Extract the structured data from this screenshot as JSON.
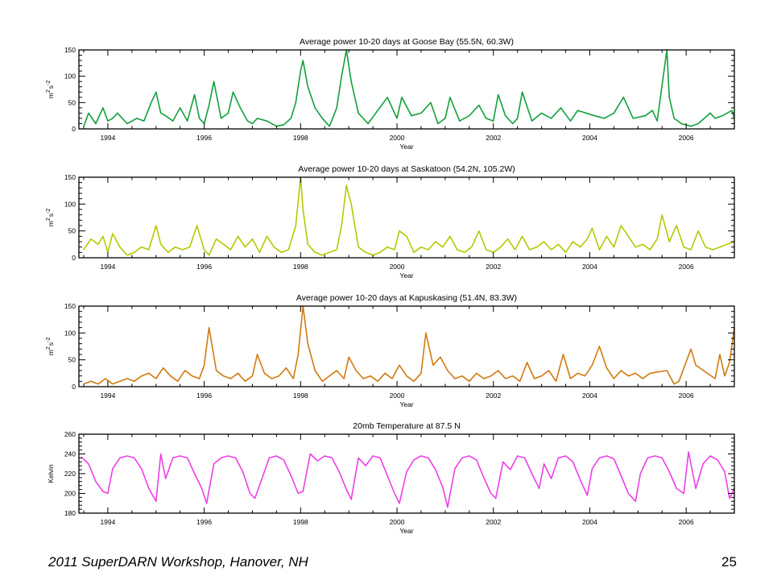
{
  "footer": {
    "text": "2011 SuperDARN Workshop, Hanover, NH",
    "page_number": "25"
  },
  "chart_data": [
    {
      "type": "line",
      "title": "Average power 10-20 days at Goose Bay (55.5N, 60.3W)",
      "xlabel": "Year",
      "ylabel": "m^2 s^-2",
      "xlim": [
        1993.4,
        2007.0
      ],
      "ylim": [
        0,
        150
      ],
      "xticks": [
        1994,
        1996,
        1998,
        2000,
        2002,
        2004,
        2006
      ],
      "yticks": [
        0,
        50,
        100,
        150
      ],
      "grid": false,
      "color": "#12a03c",
      "gaps": [
        [
          1994.2,
          1994.35
        ],
        [
          1999.5,
          1999.75
        ],
        [
          2002.85,
          2002.95
        ],
        [
          2003.8,
          2004.05
        ],
        [
          2004.95,
          2005.1
        ],
        [
          2005.45,
          2005.55
        ],
        [
          2006.3,
          2006.45
        ]
      ],
      "series": [
        {
          "x": [
            1993.5,
            1993.6,
            1993.75,
            1993.9,
            1994.0,
            1994.1,
            1994.2,
            1994.4,
            1994.6,
            1994.75,
            1994.9,
            1995.0,
            1995.1,
            1995.2,
            1995.35,
            1995.5,
            1995.65,
            1995.8,
            1995.9,
            1996.0,
            1996.1,
            1996.2,
            1996.35,
            1996.5,
            1996.6,
            1996.75,
            1996.9,
            1997.0,
            1997.1,
            1997.3,
            1997.5,
            1997.65,
            1997.8,
            1997.9,
            1998.0,
            1998.05,
            1998.15,
            1998.3,
            1998.45,
            1998.6,
            1998.75,
            1998.85,
            1998.95,
            1999.05,
            1999.2,
            1999.4,
            1999.8,
            1999.9,
            2000.0,
            2000.1,
            2000.3,
            2000.5,
            2000.7,
            2000.85,
            2001.0,
            2001.1,
            2001.3,
            2001.5,
            2001.7,
            2001.85,
            2002.0,
            2002.1,
            2002.25,
            2002.4,
            2002.5,
            2002.6,
            2002.8,
            2003.0,
            2003.2,
            2003.4,
            2003.6,
            2003.75,
            2004.1,
            2004.3,
            2004.5,
            2004.7,
            2004.9,
            2005.15,
            2005.3,
            2005.4,
            2005.6,
            2005.65,
            2005.75,
            2005.9,
            2006.1,
            2006.25,
            2006.5,
            2006.6,
            2006.75,
            2006.85,
            2006.95,
            2007.0
          ],
          "y": [
            5,
            30,
            10,
            40,
            15,
            20,
            30,
            10,
            20,
            15,
            50,
            70,
            30,
            25,
            15,
            40,
            15,
            65,
            20,
            10,
            45,
            90,
            20,
            30,
            70,
            40,
            15,
            10,
            20,
            15,
            5,
            8,
            20,
            50,
            110,
            130,
            80,
            40,
            20,
            5,
            40,
            100,
            150,
            90,
            30,
            10,
            60,
            40,
            20,
            60,
            25,
            30,
            50,
            10,
            20,
            60,
            15,
            25,
            45,
            20,
            15,
            65,
            25,
            10,
            20,
            70,
            15,
            30,
            20,
            40,
            15,
            35,
            25,
            20,
            30,
            60,
            20,
            25,
            35,
            15,
            150,
            60,
            20,
            10,
            5,
            10,
            30,
            20,
            25,
            30,
            35,
            20
          ]
        }
      ]
    },
    {
      "type": "line",
      "title": "Average power 10-20 days at Saskatoon (54.2N, 105.2W)",
      "xlabel": "Year",
      "ylabel": "m^2 s^-2",
      "xlim": [
        1993.4,
        2007.0
      ],
      "ylim": [
        0,
        150
      ],
      "xticks": [
        1994,
        1996,
        1998,
        2000,
        2002,
        2004,
        2006
      ],
      "yticks": [
        0,
        50,
        100,
        150
      ],
      "grid": false,
      "color": "#b7c800",
      "gaps": [],
      "series": [
        {
          "x": [
            1993.5,
            1993.65,
            1993.8,
            1993.9,
            1994.0,
            1994.1,
            1994.25,
            1994.4,
            1994.55,
            1994.7,
            1994.85,
            1995.0,
            1995.1,
            1995.25,
            1995.4,
            1995.55,
            1995.7,
            1995.85,
            1996.0,
            1996.1,
            1996.25,
            1996.4,
            1996.55,
            1996.7,
            1996.85,
            1997.0,
            1997.15,
            1997.3,
            1997.45,
            1997.6,
            1997.75,
            1997.9,
            1998.0,
            1998.05,
            1998.15,
            1998.3,
            1998.45,
            1998.6,
            1998.75,
            1998.85,
            1998.95,
            1999.05,
            1999.2,
            1999.35,
            1999.5,
            1999.65,
            1999.8,
            1999.95,
            2000.05,
            2000.2,
            2000.35,
            2000.5,
            2000.65,
            2000.8,
            2000.95,
            2001.1,
            2001.25,
            2001.4,
            2001.55,
            2001.7,
            2001.85,
            2002.0,
            2002.15,
            2002.3,
            2002.45,
            2002.6,
            2002.75,
            2002.9,
            2003.05,
            2003.2,
            2003.35,
            2003.5,
            2003.65,
            2003.8,
            2003.95,
            2004.05,
            2004.2,
            2004.35,
            2004.5,
            2004.65,
            2004.8,
            2004.95,
            2005.1,
            2005.25,
            2005.4,
            2005.5,
            2005.65,
            2005.8,
            2005.95,
            2006.1,
            2006.25,
            2006.4,
            2006.55,
            2006.7,
            2006.85,
            2007.0
          ],
          "y": [
            15,
            35,
            25,
            40,
            10,
            45,
            20,
            5,
            10,
            20,
            15,
            60,
            25,
            10,
            20,
            15,
            20,
            60,
            15,
            5,
            35,
            25,
            15,
            40,
            20,
            35,
            10,
            40,
            20,
            10,
            15,
            60,
            150,
            90,
            25,
            10,
            5,
            10,
            15,
            60,
            135,
            100,
            20,
            10,
            5,
            10,
            20,
            15,
            50,
            40,
            10,
            20,
            15,
            30,
            20,
            40,
            15,
            10,
            20,
            50,
            15,
            10,
            20,
            35,
            15,
            40,
            15,
            20,
            30,
            15,
            25,
            10,
            30,
            20,
            35,
            55,
            15,
            40,
            20,
            60,
            40,
            20,
            25,
            15,
            35,
            80,
            30,
            60,
            20,
            15,
            50,
            20,
            15,
            20,
            25,
            30
          ]
        }
      ]
    },
    {
      "type": "line",
      "title": "Average power 10-20 days at Kapuskasing (51.4N, 83.3W)",
      "xlabel": "Year",
      "ylabel": "m^2 s^-2",
      "xlim": [
        1993.4,
        2007.0
      ],
      "ylim": [
        0,
        150
      ],
      "xticks": [
        1994,
        1996,
        1998,
        2000,
        2002,
        2004,
        2006
      ],
      "yticks": [
        0,
        50,
        100,
        150
      ],
      "grid": false,
      "color": "#d07a10",
      "gaps": [
        [
          2005.3,
          2005.55
        ],
        [
          2005.9,
          2006.05
        ],
        [
          2006.25,
          2006.55
        ]
      ],
      "series": [
        {
          "x": [
            1993.5,
            1993.65,
            1993.8,
            1993.95,
            1994.1,
            1994.25,
            1994.4,
            1994.55,
            1994.7,
            1994.85,
            1995.0,
            1995.15,
            1995.3,
            1995.45,
            1995.6,
            1995.75,
            1995.9,
            1996.0,
            1996.1,
            1996.25,
            1996.4,
            1996.55,
            1996.7,
            1996.85,
            1997.0,
            1997.1,
            1997.25,
            1997.4,
            1997.55,
            1997.7,
            1997.85,
            1997.95,
            1998.05,
            1998.15,
            1998.3,
            1998.45,
            1998.6,
            1998.75,
            1998.9,
            1999.0,
            1999.15,
            1999.3,
            1999.45,
            1999.6,
            1999.75,
            1999.9,
            2000.05,
            2000.2,
            2000.35,
            2000.5,
            2000.6,
            2000.75,
            2000.9,
            2001.05,
            2001.2,
            2001.35,
            2001.5,
            2001.65,
            2001.8,
            2001.95,
            2002.1,
            2002.25,
            2002.4,
            2002.55,
            2002.7,
            2002.85,
            2003.0,
            2003.15,
            2003.3,
            2003.45,
            2003.6,
            2003.75,
            2003.9,
            2004.05,
            2004.2,
            2004.35,
            2004.5,
            2004.65,
            2004.8,
            2004.95,
            2005.1,
            2005.25,
            2005.6,
            2005.75,
            2005.85,
            2006.1,
            2006.2,
            2006.6,
            2006.7,
            2006.8,
            2006.9,
            2007.0
          ],
          "y": [
            5,
            10,
            5,
            15,
            5,
            10,
            15,
            10,
            20,
            25,
            15,
            35,
            20,
            10,
            30,
            20,
            15,
            40,
            110,
            30,
            20,
            15,
            25,
            10,
            20,
            60,
            25,
            15,
            20,
            35,
            15,
            60,
            150,
            80,
            30,
            10,
            20,
            30,
            15,
            55,
            30,
            15,
            20,
            10,
            25,
            15,
            40,
            20,
            10,
            25,
            100,
            40,
            55,
            30,
            15,
            20,
            10,
            25,
            15,
            20,
            30,
            15,
            20,
            10,
            45,
            15,
            20,
            30,
            10,
            60,
            15,
            25,
            20,
            40,
            75,
            35,
            15,
            30,
            20,
            25,
            15,
            25,
            30,
            5,
            10,
            70,
            40,
            15,
            60,
            20,
            45,
            110
          ]
        }
      ]
    },
    {
      "type": "line",
      "title": "20mb Temperature at 87.5 N",
      "xlabel": "Year",
      "ylabel": "Kelvin",
      "xlim": [
        1993.4,
        2007.0
      ],
      "ylim": [
        180,
        260
      ],
      "xticks": [
        1994,
        1996,
        1998,
        2000,
        2002,
        2004,
        2006
      ],
      "yticks": [
        180,
        200,
        220,
        240,
        260
      ],
      "grid": false,
      "color": "#ee3ee8",
      "gaps": [],
      "series": [
        {
          "x": [
            1993.45,
            1993.6,
            1993.75,
            1993.9,
            1994.0,
            1994.1,
            1994.25,
            1994.4,
            1994.55,
            1994.7,
            1994.85,
            1995.0,
            1995.1,
            1995.2,
            1995.35,
            1995.5,
            1995.65,
            1995.8,
            1995.95,
            1996.05,
            1996.2,
            1996.35,
            1996.5,
            1996.65,
            1996.8,
            1996.95,
            1997.05,
            1997.2,
            1997.35,
            1997.5,
            1997.65,
            1997.8,
            1997.95,
            1998.05,
            1998.2,
            1998.35,
            1998.5,
            1998.65,
            1998.8,
            1998.95,
            1999.05,
            1999.2,
            1999.35,
            1999.5,
            1999.65,
            1999.8,
            1999.95,
            2000.05,
            2000.2,
            2000.35,
            2000.5,
            2000.65,
            2000.8,
            2000.95,
            2001.05,
            2001.2,
            2001.35,
            2001.5,
            2001.65,
            2001.8,
            2001.95,
            2002.05,
            2002.2,
            2002.35,
            2002.5,
            2002.65,
            2002.8,
            2002.95,
            2003.05,
            2003.2,
            2003.35,
            2003.5,
            2003.65,
            2003.8,
            2003.95,
            2004.05,
            2004.2,
            2004.35,
            2004.5,
            2004.65,
            2004.8,
            2004.95,
            2005.05,
            2005.2,
            2005.35,
            2005.5,
            2005.65,
            2005.8,
            2005.95,
            2006.05,
            2006.2,
            2006.35,
            2006.5,
            2006.65,
            2006.8,
            2006.9,
            2007.0
          ],
          "y": [
            237,
            230,
            212,
            202,
            200,
            225,
            236,
            238,
            236,
            225,
            205,
            192,
            240,
            215,
            236,
            238,
            236,
            220,
            205,
            190,
            230,
            236,
            238,
            236,
            222,
            200,
            195,
            215,
            236,
            238,
            234,
            218,
            200,
            202,
            240,
            233,
            238,
            236,
            222,
            204,
            194,
            236,
            228,
            238,
            236,
            218,
            200,
            190,
            222,
            234,
            238,
            236,
            224,
            206,
            186,
            225,
            236,
            238,
            234,
            216,
            200,
            195,
            232,
            224,
            238,
            236,
            220,
            205,
            230,
            215,
            236,
            238,
            232,
            214,
            198,
            225,
            236,
            238,
            235,
            218,
            200,
            192,
            220,
            236,
            238,
            236,
            222,
            205,
            200,
            242,
            205,
            230,
            238,
            234,
            222,
            195,
            205
          ]
        }
      ]
    }
  ]
}
